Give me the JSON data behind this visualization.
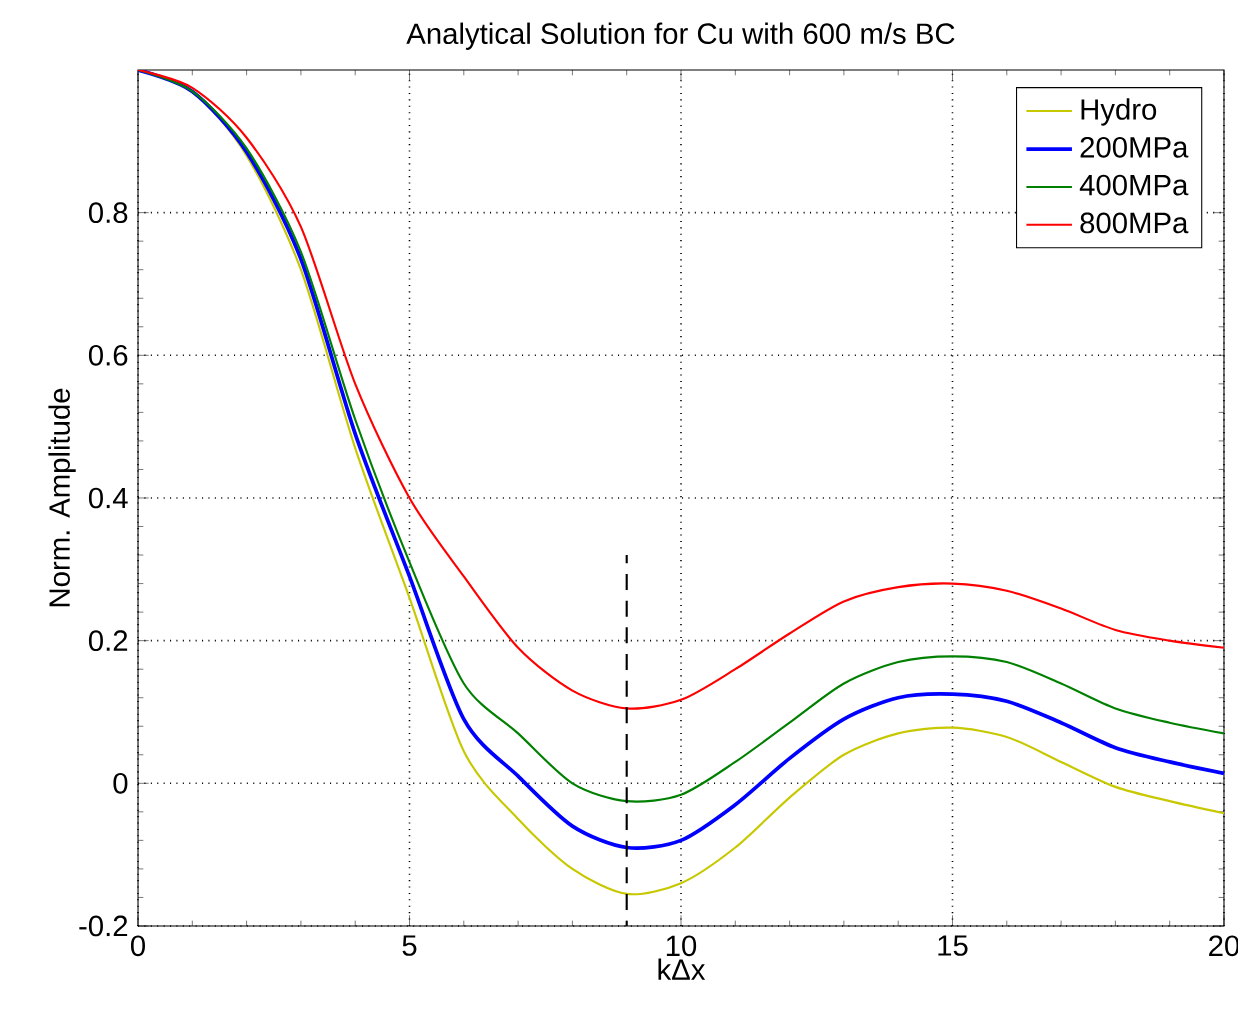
{
  "chart_data": {
    "type": "line",
    "title": "Analytical Solution for Cu with 600 m/s BC",
    "xlabel": "kΔx",
    "ylabel": "Norm. Amplitude",
    "x": [
      0,
      1,
      2,
      3,
      4,
      5,
      6,
      7,
      8,
      9,
      10,
      11,
      12,
      13,
      14,
      15,
      16,
      17,
      18,
      19,
      20
    ],
    "series": [
      {
        "name": "Hydro",
        "color": "#c8c800",
        "values": [
          1.0,
          0.97,
          0.88,
          0.72,
          0.47,
          0.26,
          0.045,
          -0.05,
          -0.12,
          -0.155,
          -0.14,
          -0.09,
          -0.02,
          0.04,
          0.07,
          0.078,
          0.065,
          0.03,
          -0.005,
          -0.025,
          -0.042
        ]
      },
      {
        "name": "200MPa",
        "color": "#0000ff",
        "values": [
          1.0,
          0.97,
          0.885,
          0.735,
          0.49,
          0.29,
          0.09,
          0.01,
          -0.06,
          -0.09,
          -0.08,
          -0.03,
          0.035,
          0.09,
          0.12,
          0.125,
          0.115,
          0.085,
          0.05,
          0.03,
          0.014
        ]
      },
      {
        "name": "400MPa",
        "color": "#008000",
        "values": [
          1.0,
          0.97,
          0.89,
          0.745,
          0.51,
          0.31,
          0.14,
          0.07,
          0.0,
          -0.025,
          -0.016,
          0.03,
          0.085,
          0.14,
          0.17,
          0.178,
          0.17,
          0.14,
          0.105,
          0.085,
          0.07
        ]
      },
      {
        "name": "800MPa",
        "color": "#ff0000",
        "values": [
          1.0,
          0.975,
          0.905,
          0.78,
          0.56,
          0.4,
          0.29,
          0.19,
          0.13,
          0.105,
          0.117,
          0.16,
          0.21,
          0.255,
          0.275,
          0.28,
          0.27,
          0.245,
          0.215,
          0.2,
          0.19
        ]
      },
      {
        "type": "line",
        "color": "#000000",
        "line_style": "dashed",
        "x": [
          9,
          9
        ],
        "values": [
          -0.2,
          0.32
        ]
      }
    ],
    "xlim": [
      0,
      20
    ],
    "ylim": [
      -0.2,
      1
    ],
    "xticks": [
      0,
      5,
      10,
      15,
      20
    ],
    "yticks": [
      -0.2,
      0,
      0.2,
      0.4,
      0.6,
      0.8
    ],
    "grid": true,
    "legend": "top right",
    "marker": "none",
    "line_style": "solid"
  }
}
